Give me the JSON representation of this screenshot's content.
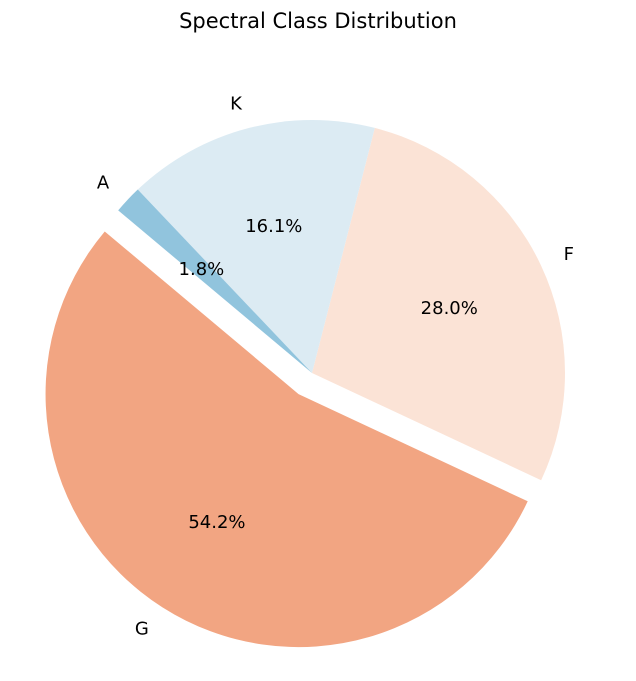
{
  "chart_data": {
    "type": "pie",
    "title": "Spectral Class Distribution",
    "slices": [
      {
        "label": "G",
        "value": 54.2,
        "pct_label": "54.2%",
        "color": "#f2a582",
        "explode": true
      },
      {
        "label": "F",
        "value": 28.0,
        "pct_label": "28.0%",
        "color": "#fbe3d6",
        "explode": false
      },
      {
        "label": "K",
        "value": 16.1,
        "pct_label": "16.1%",
        "color": "#dcebf3",
        "explode": false
      },
      {
        "label": "A",
        "value": 1.8,
        "pct_label": "1.8%",
        "color": "#91c4dd",
        "explode": false
      }
    ],
    "start_angle_deg": 140,
    "direction": "counterclockwise",
    "legend": "none"
  }
}
